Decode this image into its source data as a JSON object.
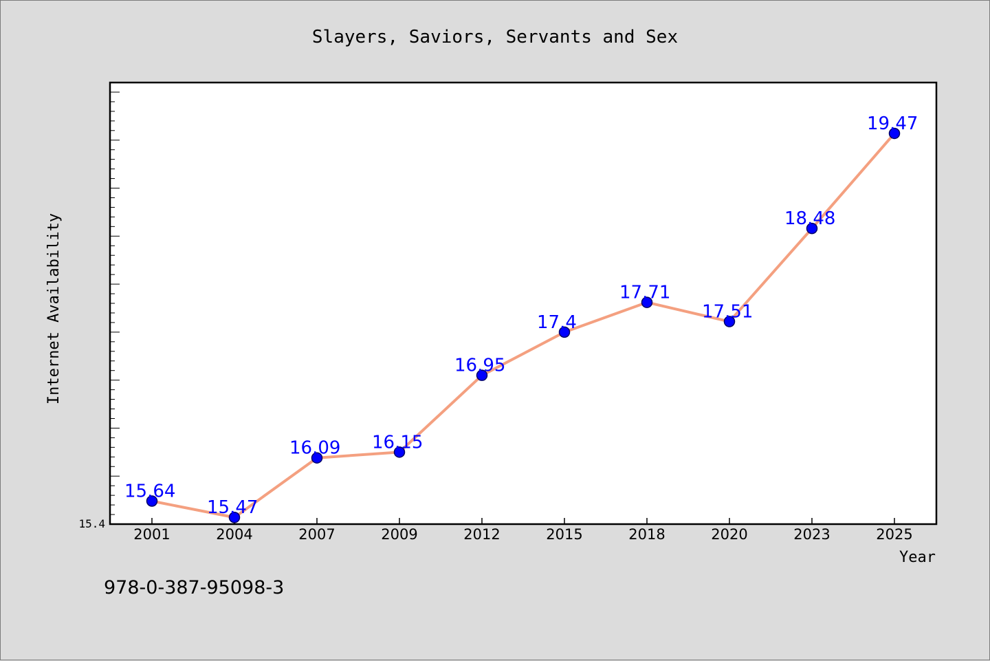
{
  "chart_data": {
    "type": "line",
    "title": "Slayers, Saviors, Servants and Sex",
    "xlabel": "Year",
    "ylabel": "Internet Availability",
    "categories": [
      "2001",
      "2004",
      "2007",
      "2009",
      "2012",
      "2015",
      "2018",
      "2020",
      "2023",
      "2025"
    ],
    "series": [
      {
        "values": [
          15.64,
          15.47,
          16.09,
          16.15,
          16.95,
          17.4,
          17.71,
          17.51,
          18.48,
          19.47
        ],
        "data_labels": [
          "15.64",
          "15.47",
          "16.09",
          "16.15",
          "16.95",
          "17.4",
          "17.71",
          "17.51",
          "18.48",
          "19.47"
        ]
      }
    ],
    "ylim": [
      15.4,
      20.0
    ],
    "ytick_labels": [
      "15.4"
    ],
    "grid": false,
    "legend": "none",
    "colors": {
      "line": "#f4a080",
      "marker": "#0000ff",
      "marker_edge": "#000066",
      "data_label": "#0000ff",
      "plot_background": "#ffffff",
      "page_background": "#dcdcdc"
    }
  },
  "footer_text": "978-0-387-95098-3"
}
